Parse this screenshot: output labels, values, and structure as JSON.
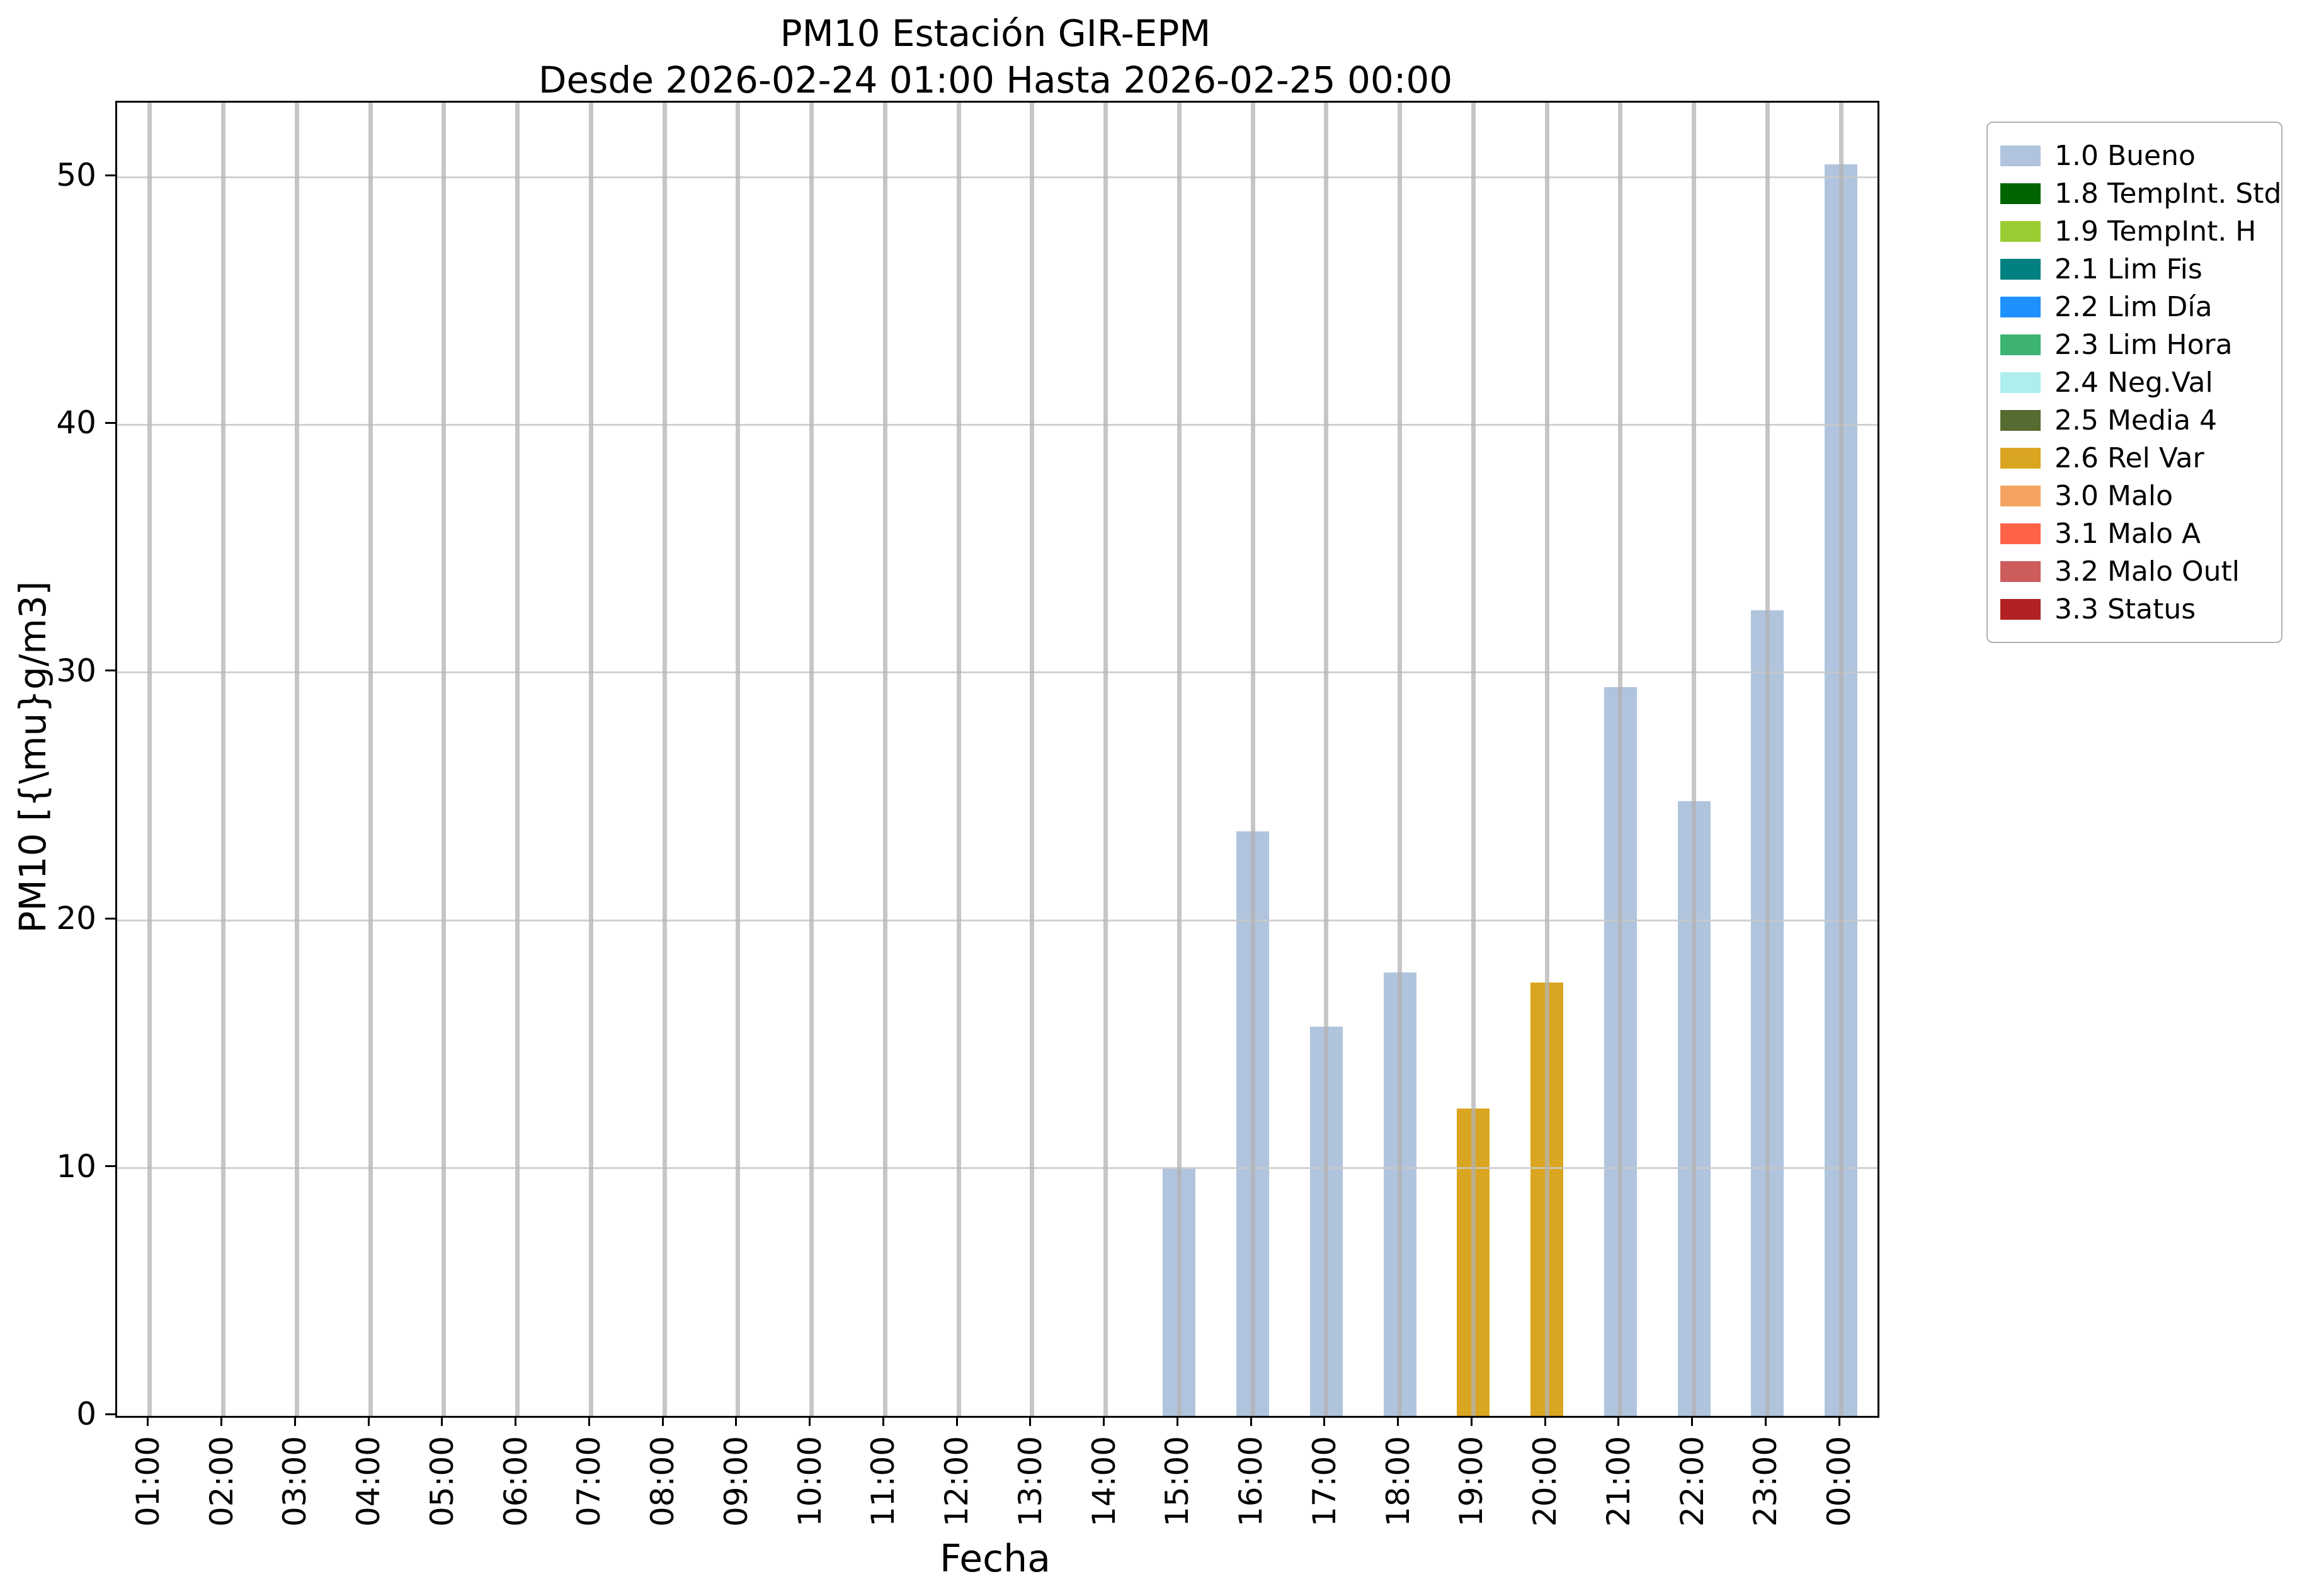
{
  "title": {
    "line1": "PM10 Estación GIR-EPM",
    "line2": "Desde 2026-02-24 01:00 Hasta 2026-02-25 00:00"
  },
  "axes": {
    "xlabel": "Fecha",
    "ylabel": "PM10 [{\\mu}g/m3]",
    "yticks": [
      0,
      10,
      20,
      30,
      40,
      50
    ]
  },
  "chart_data": {
    "type": "bar",
    "title": "PM10 Estación GIR-EPM",
    "subtitle": "Desde 2026-02-24 01:00 Hasta 2026-02-25 00:00",
    "xlabel": "Fecha",
    "ylabel": "PM10 [{\\mu}g/m3]",
    "ylim": [
      0,
      53
    ],
    "grid": true,
    "legend_position": "upper right outside",
    "categories": [
      "01:00",
      "02:00",
      "03:00",
      "04:00",
      "05:00",
      "06:00",
      "07:00",
      "08:00",
      "09:00",
      "10:00",
      "11:00",
      "12:00",
      "13:00",
      "14:00",
      "15:00",
      "16:00",
      "17:00",
      "18:00",
      "19:00",
      "20:00",
      "21:00",
      "22:00",
      "23:00",
      "00:00"
    ],
    "values": [
      null,
      null,
      null,
      null,
      null,
      null,
      null,
      null,
      null,
      null,
      null,
      null,
      null,
      null,
      10.0,
      23.6,
      15.7,
      17.9,
      12.4,
      17.5,
      29.4,
      24.8,
      32.5,
      50.5
    ],
    "statuses": [
      null,
      null,
      null,
      null,
      null,
      null,
      null,
      null,
      null,
      null,
      null,
      null,
      null,
      null,
      "1.0 Bueno",
      "1.0 Bueno",
      "1.0 Bueno",
      "1.0 Bueno",
      "2.6 Rel Var",
      "2.6 Rel Var",
      "1.0 Bueno",
      "1.0 Bueno",
      "1.0 Bueno",
      "1.0 Bueno"
    ],
    "legend": [
      {
        "label": "1.0 Bueno",
        "color": "#b0c4de"
      },
      {
        "label": "1.8 TempInt. Std",
        "color": "#006400"
      },
      {
        "label": "1.9 TempInt. H",
        "color": "#9acd32"
      },
      {
        "label": "2.1 Lim Fis",
        "color": "#008080"
      },
      {
        "label": "2.2 Lim Día",
        "color": "#1e90ff"
      },
      {
        "label": "2.3 Lim Hora",
        "color": "#3cb371"
      },
      {
        "label": "2.4 Neg.Val",
        "color": "#afeeee"
      },
      {
        "label": "2.5 Media 4",
        "color": "#556b2f"
      },
      {
        "label": "2.6 Rel Var",
        "color": "#daa520"
      },
      {
        "label": "3.0 Malo",
        "color": "#f4a460"
      },
      {
        "label": "3.1 Malo A",
        "color": "#ff6347"
      },
      {
        "label": "3.2 Malo Outl",
        "color": "#cd5c5c"
      },
      {
        "label": "3.3 Status",
        "color": "#b22222"
      }
    ]
  }
}
